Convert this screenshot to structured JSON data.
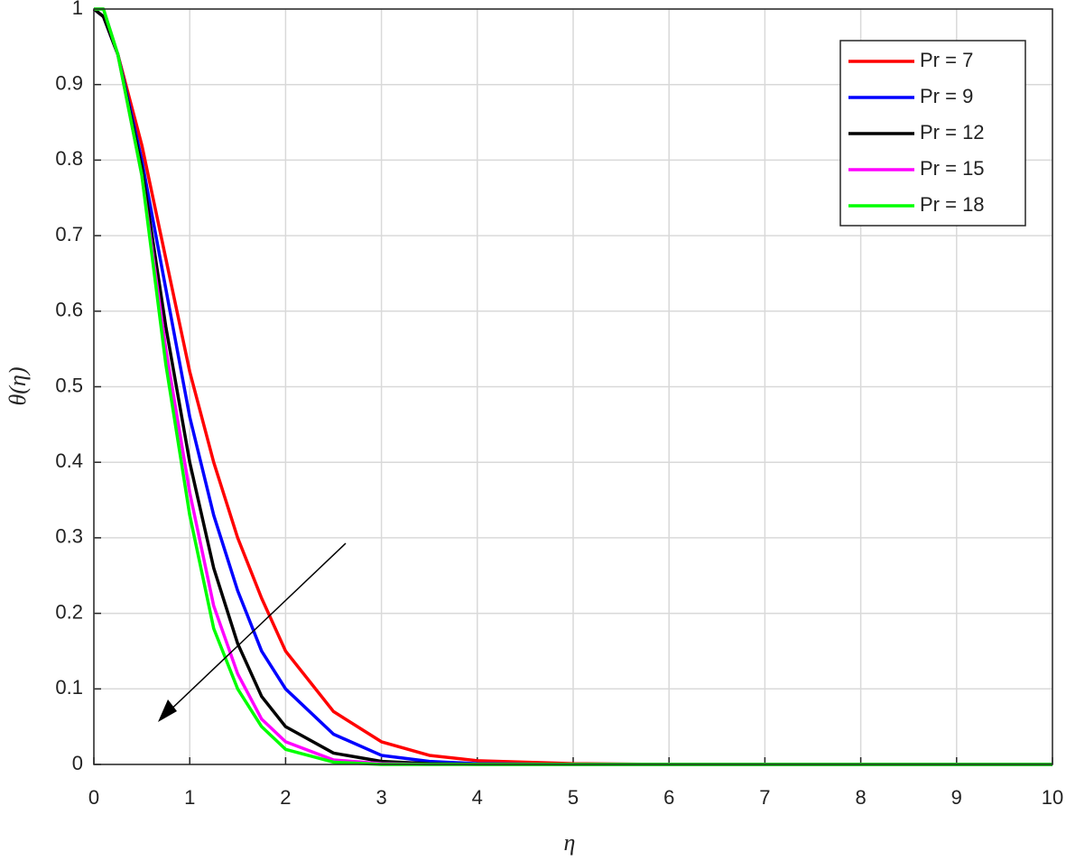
{
  "chart_data": {
    "type": "line",
    "xlabel": "η",
    "ylabel": "θ(η)",
    "x": [
      0,
      0.1,
      0.25,
      0.5,
      0.75,
      1,
      1.25,
      1.5,
      1.75,
      2,
      2.5,
      3,
      3.5,
      4,
      5,
      6,
      8,
      10
    ],
    "series": [
      {
        "name": "Pr = 7",
        "color": "#ff0000",
        "values": [
          1,
          0.99,
          0.94,
          0.82,
          0.67,
          0.52,
          0.4,
          0.3,
          0.22,
          0.15,
          0.07,
          0.03,
          0.012,
          0.005,
          0.001,
          0,
          0,
          0
        ]
      },
      {
        "name": "Pr = 9",
        "color": "#0000ff",
        "values": [
          1,
          0.99,
          0.94,
          0.8,
          0.63,
          0.46,
          0.33,
          0.23,
          0.15,
          0.1,
          0.04,
          0.012,
          0.004,
          0.001,
          0,
          0,
          0,
          0
        ]
      },
      {
        "name": "Pr = 12",
        "color": "#000000",
        "values": [
          1,
          0.99,
          0.94,
          0.79,
          0.58,
          0.4,
          0.26,
          0.16,
          0.09,
          0.05,
          0.015,
          0.004,
          0.001,
          0,
          0,
          0,
          0,
          0
        ]
      },
      {
        "name": "Pr = 15",
        "color": "#ff00ff",
        "values": [
          1,
          1,
          0.94,
          0.78,
          0.55,
          0.36,
          0.21,
          0.12,
          0.06,
          0.03,
          0.006,
          0.001,
          0,
          0,
          0,
          0,
          0,
          0
        ]
      },
      {
        "name": "Pr = 18",
        "color": "#00ff00",
        "values": [
          1,
          1,
          0.94,
          0.78,
          0.53,
          0.33,
          0.18,
          0.1,
          0.05,
          0.02,
          0.003,
          0,
          0,
          0,
          0,
          0,
          0,
          0
        ]
      }
    ],
    "xlim": [
      0,
      10
    ],
    "xticks": [
      0,
      1,
      2,
      3,
      4,
      5,
      6,
      7,
      8,
      9,
      10
    ],
    "ylim": [
      0,
      1
    ],
    "yticks": [
      0,
      0.1,
      0.2,
      0.3,
      0.4,
      0.5,
      0.6,
      0.7,
      0.8,
      0.9,
      1
    ],
    "grid": true,
    "legend": "upper right"
  }
}
